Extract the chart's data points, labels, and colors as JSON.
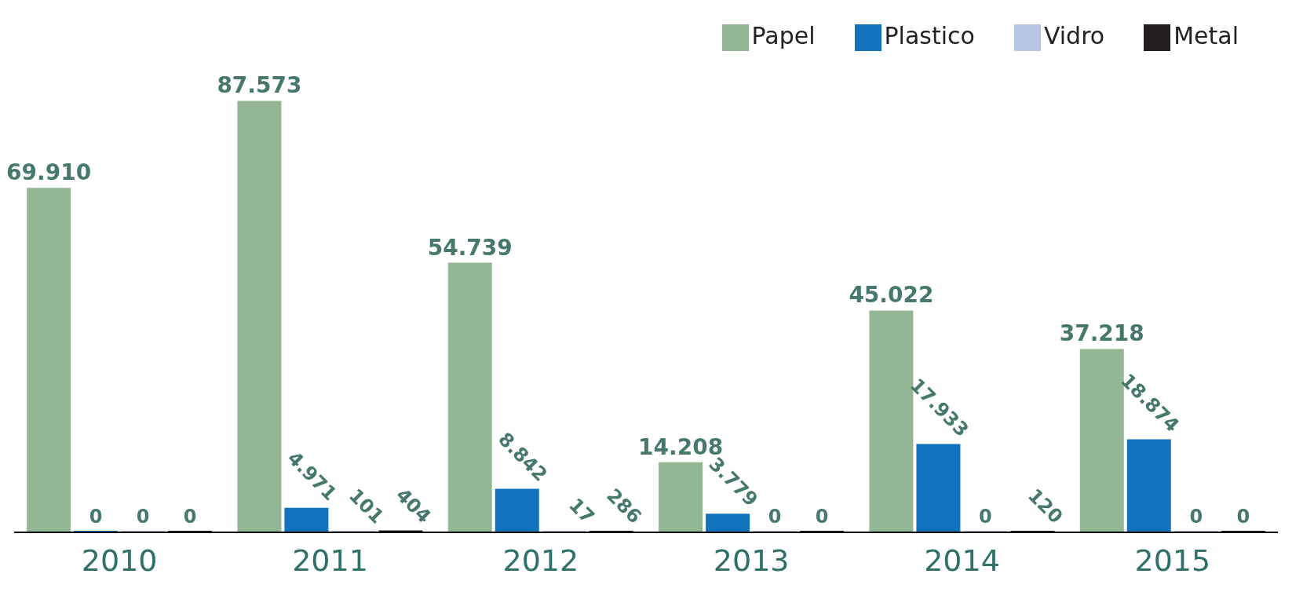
{
  "chart_data": {
    "type": "bar",
    "categories": [
      "2010",
      "2011",
      "2012",
      "2013",
      "2014",
      "2015"
    ],
    "series": [
      {
        "name": "Papel",
        "color": "#93b795",
        "values": [
          69910,
          87573,
          54739,
          14208,
          45022,
          37218
        ],
        "value_labels": [
          "69.910",
          "87.573",
          "54.739",
          "14.208",
          "45.022",
          "37.218"
        ]
      },
      {
        "name": "Plastico",
        "color": "#1173be",
        "values": [
          0,
          4971,
          8842,
          3779,
          17933,
          18874
        ],
        "value_labels": [
          "0",
          "4.971",
          "8.842",
          "3.779",
          "17.933",
          "18.874"
        ]
      },
      {
        "name": "Vidro",
        "color": "#b7c6e6",
        "values": [
          0,
          101,
          17,
          0,
          0,
          0
        ],
        "value_labels": [
          "0",
          "101",
          "17",
          "0",
          "0",
          "0"
        ]
      },
      {
        "name": "Metal",
        "color": "#231f20",
        "values": [
          0,
          404,
          286,
          0,
          120,
          0
        ],
        "value_labels": [
          "0",
          "404",
          "286",
          "0",
          "120",
          "0"
        ]
      }
    ],
    "legend": "top right",
    "tick_labels": "x"
  }
}
